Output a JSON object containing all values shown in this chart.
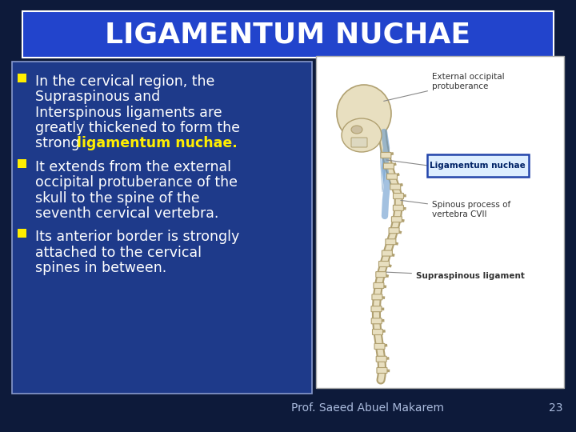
{
  "title": "LIGAMENTUM NUCHAE",
  "title_bg_color": "#2244cc",
  "title_text_color": "#ffffff",
  "slide_bg_color": "#0d1a3a",
  "text_box_bg": "#1e3a8a",
  "text_box_border": "#8899cc",
  "bullet_color": "#ffee00",
  "bullet_sq_color": "#ffee00",
  "footer_text": "Prof. Saeed Abuel Makarem",
  "page_number": "23",
  "footer_color": "#aabbdd",
  "text_color": "#ffffff",
  "font_size_title": 26,
  "font_size_body": 12.5,
  "font_size_footer": 10,
  "img_bg": "#ffffff",
  "img_border": "#aaaaaa",
  "bone_color": "#e8dfc0",
  "bone_edge": "#b0a070",
  "label_text": "#333333",
  "nuchae_box_fill": "#ddeeff",
  "nuchae_box_edge": "#2244aa",
  "line_color": "#888888"
}
